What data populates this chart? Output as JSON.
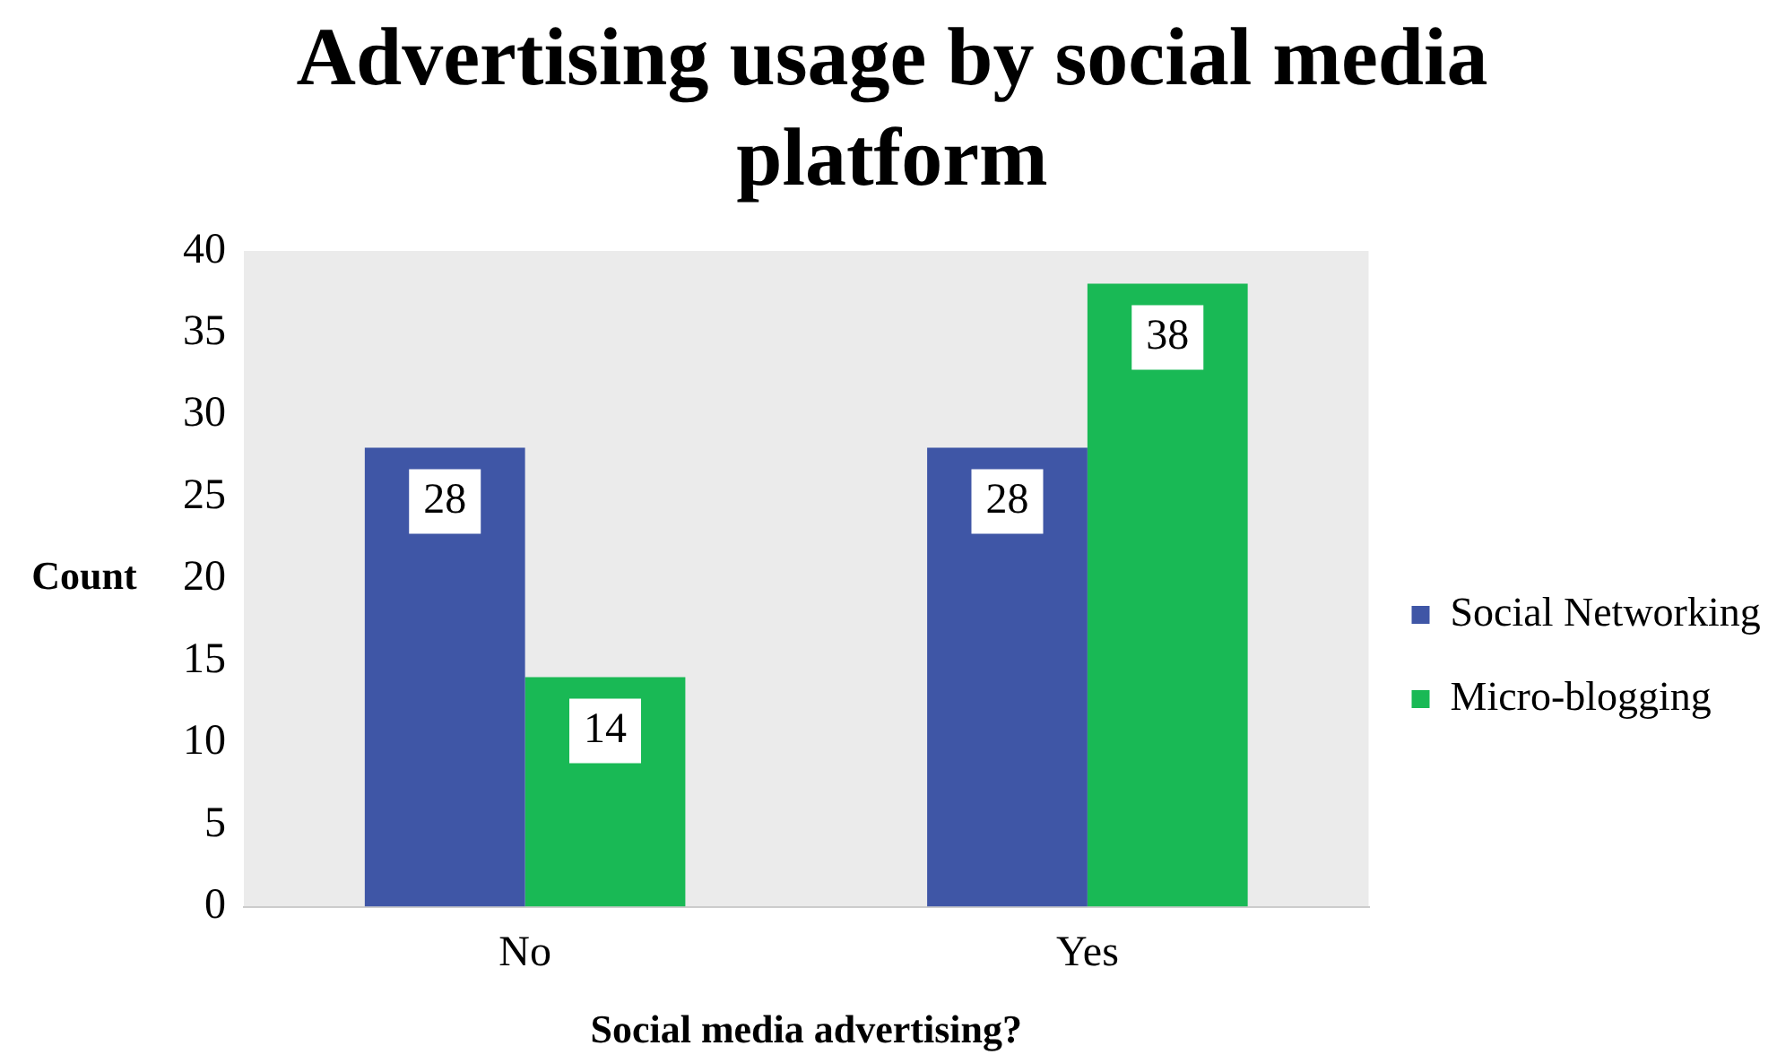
{
  "chart_data": {
    "type": "bar",
    "title": "Advertising usage by social media platform",
    "xlabel": "Social media advertising?",
    "ylabel": "Count",
    "categories": [
      "No",
      "Yes"
    ],
    "series": [
      {
        "name": "Social Networking",
        "color": "#3f56a6",
        "values": [
          28,
          28
        ]
      },
      {
        "name": "Micro-blogging",
        "color": "#19b955",
        "values": [
          14,
          38
        ]
      }
    ],
    "ylim": [
      0,
      40
    ],
    "yticks": [
      0,
      5,
      10,
      15,
      20,
      25,
      30,
      35,
      40
    ],
    "grid": false,
    "legend": "right",
    "data_labels": true
  }
}
